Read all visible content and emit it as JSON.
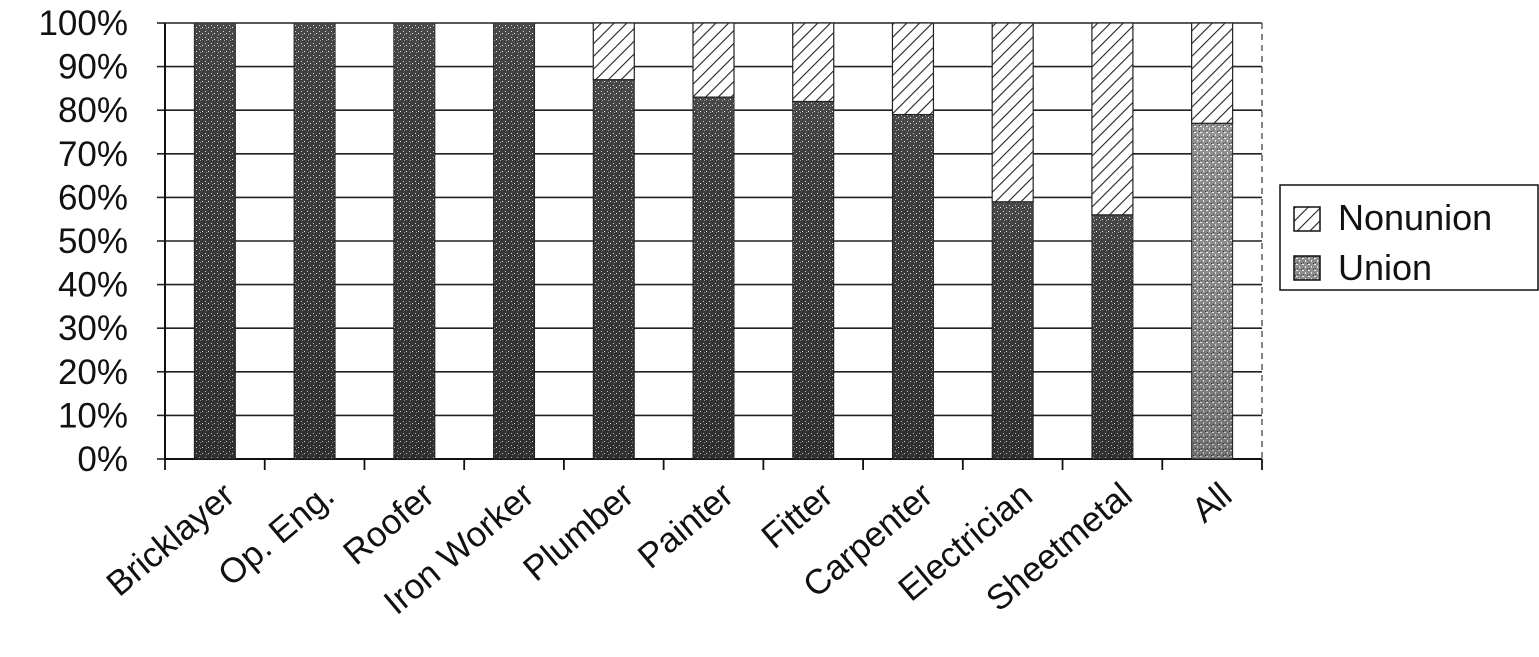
{
  "chart_data": {
    "type": "bar",
    "stacked": true,
    "percent": true,
    "categories": [
      "Bricklayer",
      "Op. Eng.",
      "Roofer",
      "Iron Worker",
      "Plumber",
      "Painter",
      "Fitter",
      "Carpenter",
      "Electrician",
      "Sheetmetal",
      "All"
    ],
    "series": [
      {
        "name": "Union",
        "values": [
          100,
          100,
          100,
          100,
          87,
          83,
          82,
          79,
          59,
          56,
          77
        ]
      },
      {
        "name": "Nonunion",
        "values": [
          0,
          0,
          0,
          0,
          13,
          17,
          18,
          21,
          41,
          44,
          23
        ]
      }
    ],
    "ylim": [
      0,
      100
    ],
    "yticks": [
      "0%",
      "10%",
      "20%",
      "30%",
      "40%",
      "50%",
      "60%",
      "70%",
      "80%",
      "90%",
      "100%"
    ],
    "grid": true,
    "legend": "right",
    "colors": {
      "union": "#4d4d4d",
      "nonunion_hatch": "#222222",
      "background": "#ffffff"
    }
  }
}
